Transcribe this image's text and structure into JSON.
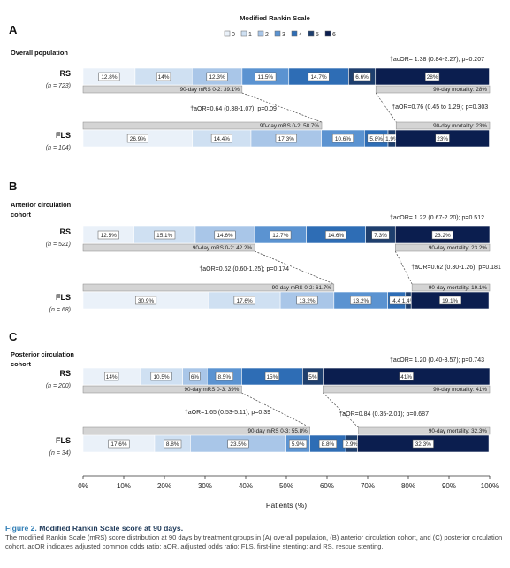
{
  "chart_data": {
    "type": "bar",
    "orientation": "horizontal",
    "stacked": true,
    "legend": {
      "title": "Modified Rankin Scale",
      "entries": [
        "0",
        "1",
        "2",
        "3",
        "4",
        "5",
        "6"
      ],
      "colors": [
        "#eaf1f9",
        "#cfe0f2",
        "#a9c6e8",
        "#5b93d1",
        "#2e6db5",
        "#1e3f6e",
        "#0b1e4f"
      ],
      "placement": "top-center"
    },
    "xlabel": "Patients (%)",
    "xlim": [
      0,
      100
    ],
    "xticks": [
      "0%",
      "10%",
      "20%",
      "30%",
      "40%",
      "50%",
      "60%",
      "70%",
      "80%",
      "90%",
      "100%"
    ],
    "grid": false,
    "panels": [
      {
        "letter": "A",
        "title_lines": [
          "Overall population"
        ],
        "groups": [
          {
            "name": "RS",
            "n": "(n = 723)",
            "values": [
              12.8,
              14,
              12.3,
              11.5,
              14.7,
              6.6,
              28
            ],
            "labels": [
              "12.8%",
              "14%",
              "12.3%",
              "11.5%",
              "14.7%",
              "6.6%",
              "28%"
            ],
            "favorable_label": "90-day mRS 0-2: 39.1%",
            "favorable_pct": 39.1,
            "mortality_label": "90-day mortality: 28%",
            "mortality_pct": 28
          },
          {
            "name": "FLS",
            "n": "(n = 104)",
            "values": [
              26.9,
              14.4,
              17.3,
              10.6,
              5.8,
              1.9,
              23
            ],
            "labels": [
              "26.9%",
              "14.4%",
              "17.3%",
              "10.6%",
              "5.8%",
              "1.9%",
              "23%"
            ],
            "favorable_label": "90-day mRS 0-2: 58.7%",
            "favorable_pct": 58.7,
            "mortality_label": "90-day mortality: 23%",
            "mortality_pct": 23
          }
        ],
        "acor": "†acOR= 1.38 (0.84-2.27); p=0.207",
        "aor_favorable": "†aOR=0.64 (0.38-1.07); p=0.09",
        "aor_mortality": "†aOR=0.76 (0.45 to 1.29); p=0.303"
      },
      {
        "letter": "B",
        "title_lines": [
          "Anterior circulation",
          "cohort"
        ],
        "groups": [
          {
            "name": "RS",
            "n": "(n = 521)",
            "values": [
              12.5,
              15.1,
              14.6,
              12.7,
              14.6,
              7.3,
              23.2
            ],
            "labels": [
              "12.5%",
              "15.1%",
              "14.6%",
              "12.7%",
              "14.6%",
              "7.3%",
              "23.2%"
            ],
            "favorable_label": "90-day mRS 0-2: 42.2%",
            "favorable_pct": 42.2,
            "mortality_label": "90-day mortality: 23.2%",
            "mortality_pct": 23.2
          },
          {
            "name": "FLS",
            "n": "(n = 68)",
            "values": [
              30.9,
              17.6,
              13.2,
              13.2,
              4.4,
              1.4,
              19.1
            ],
            "labels": [
              "30.9%",
              "17.6%",
              "13.2%",
              "13.2%",
              "4.4",
              "1.4%",
              "19.1%"
            ],
            "favorable_label": "90-day mRS 0-2: 61.7%",
            "favorable_pct": 61.7,
            "mortality_label": "90-day mortality: 19.1%",
            "mortality_pct": 19.1
          }
        ],
        "acor": "†acOR= 1.22 (0.67-2.20); p=0.512",
        "aor_favorable": "†aOR=0.62 (0.60-1.25); p=0.174",
        "aor_mortality": "†aOR=0.62 (0.30-1.26); p=0.181"
      },
      {
        "letter": "C",
        "title_lines": [
          "Posterior circulation",
          "cohort"
        ],
        "groups": [
          {
            "name": "RS",
            "n": "(n = 200)",
            "values": [
              14,
              10.5,
              6,
              8.5,
              15,
              5,
              41
            ],
            "labels": [
              "14%",
              "10.5%",
              "6%",
              "8.5%",
              "15%",
              "5%",
              "41%"
            ],
            "favorable_label": "90-day mRS 0-3: 39%",
            "favorable_pct": 39,
            "mortality_label": "90-day mortality: 41%",
            "mortality_pct": 41
          },
          {
            "name": "FLS",
            "n": "(n = 34)",
            "values": [
              17.6,
              8.8,
              23.5,
              5.9,
              8.8,
              2.9,
              32.3
            ],
            "labels": [
              "17.6%",
              "8.8%",
              "23.5%",
              "5.9%",
              "8.8%",
              "2.9%",
              "32.3%"
            ],
            "favorable_label": "90-day mRS 0-3: 55.8%",
            "favorable_pct": 55.8,
            "mortality_label": "90-day mortality: 32.3%",
            "mortality_pct": 32.3
          }
        ],
        "acor": "†acOR= 1.20 (0.40-3.57); p=0.743",
        "aor_favorable": "†aOR=1.65 (0.53-5.11); p=0.39",
        "aor_mortality": "†aOR=0.84 (0.35-2.01); p=0.687"
      }
    ]
  },
  "caption": {
    "figure_label": "Figure 2.",
    "title": "Modified Rankin Scale score at 90 days.",
    "body": "The modified Rankin Scale (mRS) score distribution at 90 days by treatment groups in (A) overall population, (B) anterior circulation cohort, and (C) posterior circulation cohort. acOR indicates adjusted common odds ratio; aOR, adjusted odds ratio; FLS, first-line stenting; and RS, rescue stenting."
  }
}
